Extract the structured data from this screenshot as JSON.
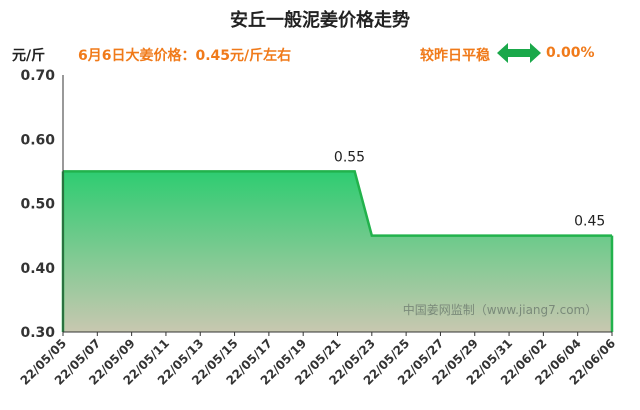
{
  "header": {
    "title": "安丘一般泥姜价格走势",
    "unit": "元/斤",
    "price_note": "6月6日大姜价格：0.45元/斤左右",
    "trend_label": "较昨日平稳",
    "change": "0.00%"
  },
  "watermark": "中国姜网监制（www.jiang7.com）",
  "colors": {
    "line": "#22b24c",
    "fill_top": "#2ecc71",
    "fill_bottom": "#c8c8b0",
    "accent": "#f07a1a",
    "arrow": "#1aa84a"
  },
  "icons": {
    "trend": "double-arrow-icon"
  },
  "chart_data": {
    "type": "area",
    "title": "安丘一般泥姜价格走势",
    "ylabel": "元/斤",
    "ylim": [
      0.3,
      0.7
    ],
    "yticks": [
      "0.30",
      "0.40",
      "0.50",
      "0.60",
      "0.70"
    ],
    "categories": [
      "22/05/05",
      "22/05/07",
      "22/05/09",
      "22/05/11",
      "22/05/13",
      "22/05/15",
      "22/05/17",
      "22/05/19",
      "22/05/21",
      "22/05/23",
      "22/05/25",
      "22/05/27",
      "22/05/29",
      "22/05/31",
      "22/06/02",
      "22/06/04",
      "22/06/06"
    ],
    "series": [
      {
        "x": [
          "22/05/05",
          "22/05/22",
          "22/05/23",
          "22/06/06"
        ],
        "values": [
          0.55,
          0.55,
          0.45,
          0.45
        ]
      }
    ],
    "annotations": [
      {
        "x": "22/05/21",
        "y": 0.55,
        "label": "0.55"
      },
      {
        "x": "22/06/04",
        "y": 0.45,
        "label": "0.45"
      }
    ],
    "grid": false
  }
}
